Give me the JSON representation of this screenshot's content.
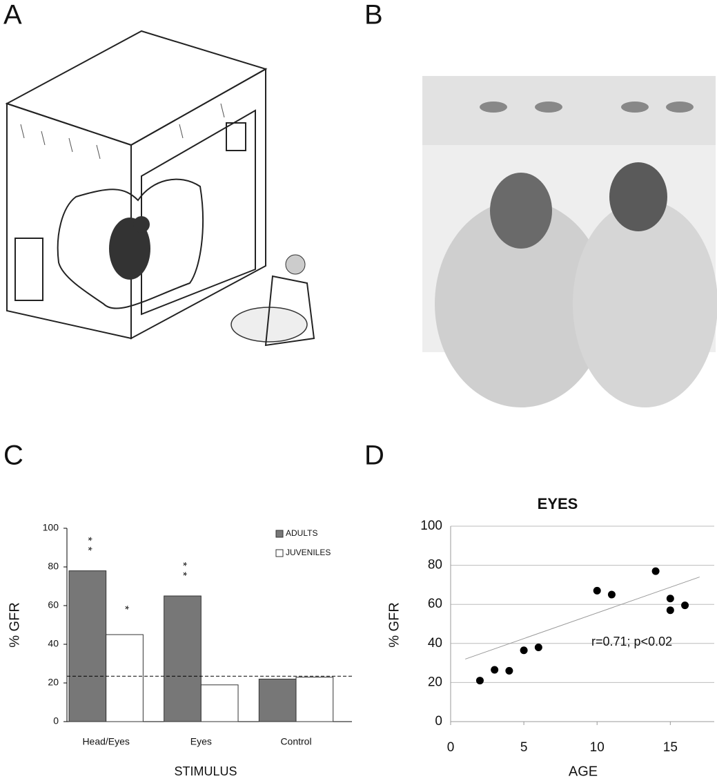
{
  "panel_labels": [
    "A",
    "B",
    "C",
    "D"
  ],
  "chart_data": [
    {
      "type": "bar",
      "categories": [
        "Head/Eyes",
        "Eyes",
        "Control"
      ],
      "series": [
        {
          "name": "ADULTS",
          "color": "#777777",
          "values": [
            78,
            65,
            22
          ],
          "significance": [
            "**",
            "**",
            null
          ]
        },
        {
          "name": "JUVENILES",
          "color": "#ffffff",
          "values": [
            45,
            19,
            23
          ],
          "significance": [
            "*",
            null,
            null
          ]
        }
      ],
      "ylabel": "% GFR",
      "xlabel": "STIMULUS",
      "ylim": [
        0,
        100
      ],
      "yticks": [
        0,
        20,
        40,
        60,
        80,
        100
      ],
      "grid": false,
      "reference_line": 23.5,
      "legend": "upper-right"
    },
    {
      "type": "scatter",
      "title": "EYES",
      "xlabel": "AGE",
      "ylabel": "% GFR",
      "x": [
        2,
        3,
        4,
        5,
        6,
        10,
        11,
        14,
        15,
        15,
        16
      ],
      "y": [
        21,
        26.5,
        26,
        36.5,
        38,
        67,
        65,
        77,
        63,
        57,
        59.5
      ],
      "color": "#000000",
      "trendline": {
        "x": [
          1,
          17
        ],
        "y": [
          32,
          74
        ],
        "color": "#999999"
      },
      "annotation": "r=0.71; p<0.02",
      "xlim": [
        0,
        18
      ],
      "xticks": [
        0,
        5,
        10,
        15
      ],
      "ylim": [
        0,
        100
      ],
      "yticks": [
        0,
        20,
        40,
        60,
        80,
        100
      ],
      "grid": true
    }
  ]
}
